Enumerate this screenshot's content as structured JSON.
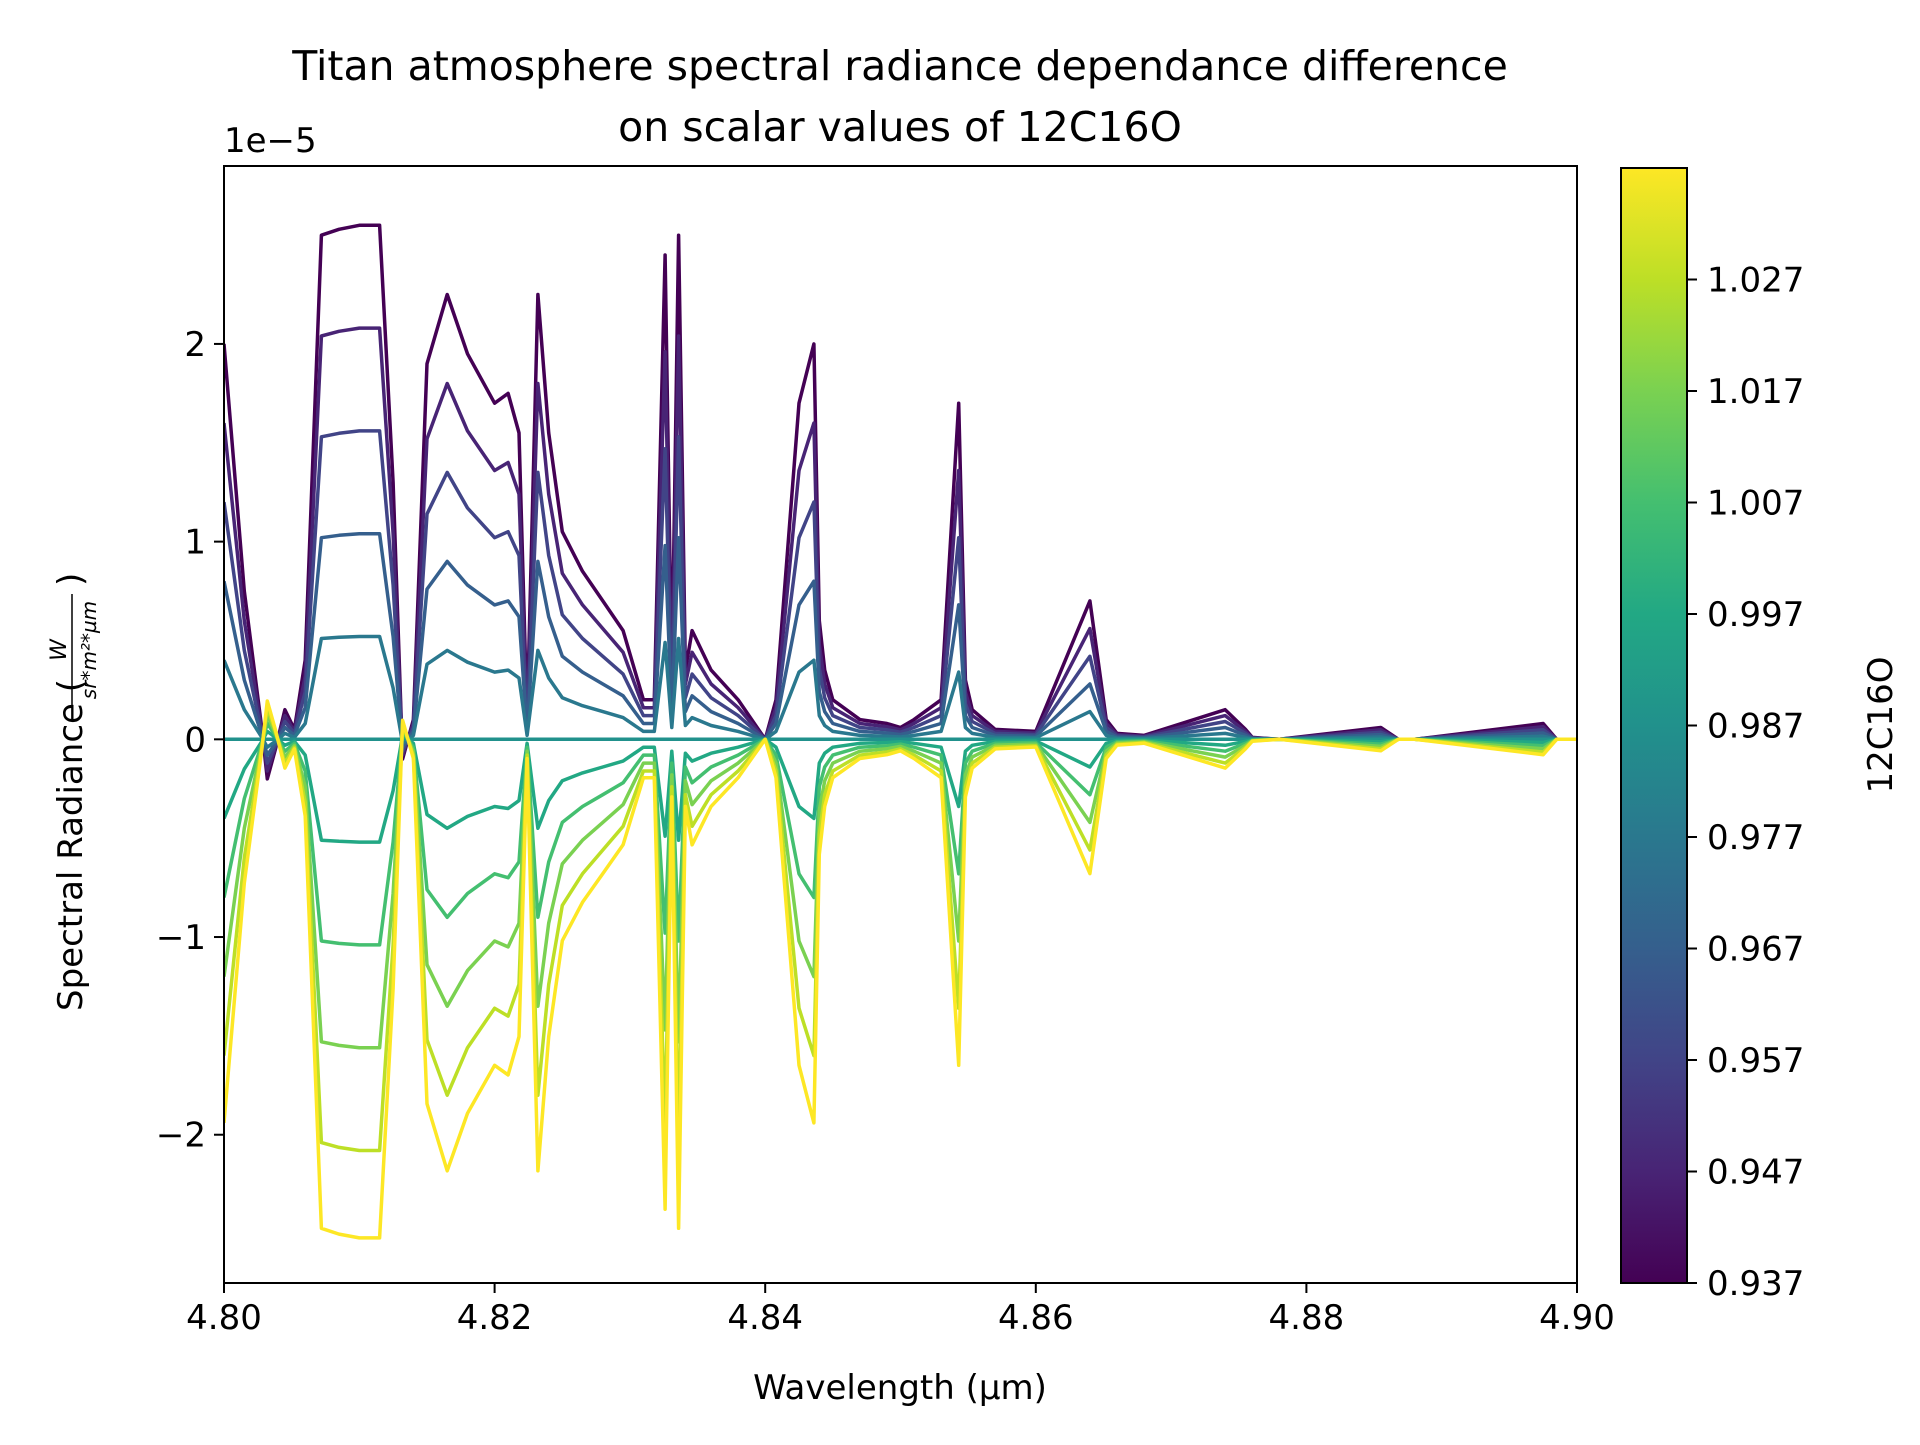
{
  "chart_data": {
    "type": "line",
    "title_line1": "Titan atmosphere spectral radiance dependance difference",
    "title_line2": "on scalar values of 12C16O",
    "xlabel": "Wavelength (µm)",
    "ylabel_prefix": "Spectral Radiance (",
    "ylabel_unit_numerator": "W",
    "ylabel_unit_denominator": "sr*m²*µm",
    "ylabel_suffix": ")",
    "y_offset_label": "1e−5",
    "xlim": [
      4.8,
      4.9
    ],
    "ylim": [
      -2.75,
      2.9
    ],
    "y_scale_exponent": -5,
    "x_ticks": [
      {
        "value": 4.8,
        "label": "4.80"
      },
      {
        "value": 4.82,
        "label": "4.82"
      },
      {
        "value": 4.84,
        "label": "4.84"
      },
      {
        "value": 4.86,
        "label": "4.86"
      },
      {
        "value": 4.88,
        "label": "4.88"
      },
      {
        "value": 4.9,
        "label": "4.90"
      }
    ],
    "y_ticks": [
      {
        "value": -2,
        "label": "−2"
      },
      {
        "value": -1,
        "label": "−1"
      },
      {
        "value": 0,
        "label": "0"
      },
      {
        "value": 1,
        "label": "1"
      },
      {
        "value": 2,
        "label": "2"
      }
    ],
    "colorbar": {
      "label": "12C16O",
      "colormap": "viridis",
      "range": [
        0.937,
        1.037
      ],
      "ticks": [
        "0.937",
        "0.947",
        "0.957",
        "0.967",
        "0.977",
        "0.987",
        "0.997",
        "1.007",
        "1.017",
        "1.027"
      ]
    },
    "series_scalars": [
      0.937,
      0.947,
      0.957,
      0.967,
      0.977,
      0.987,
      0.997,
      1.007,
      1.017,
      1.027,
      1.037
    ],
    "series_amplitude_factor": [
      1.0,
      0.8,
      0.6,
      0.4,
      0.2,
      0.0,
      -0.2,
      -0.4,
      -0.6,
      -0.8,
      -0.97
    ],
    "reference_profile": {
      "x": [
        4.8,
        4.8015,
        4.8028,
        4.8032,
        4.8038,
        4.8045,
        4.8052,
        4.806,
        4.8072,
        4.8085,
        4.81,
        4.8115,
        4.8125,
        4.8132,
        4.814,
        4.815,
        4.8165,
        4.818,
        4.82,
        4.821,
        4.8218,
        4.8224,
        4.8232,
        4.824,
        4.825,
        4.8265,
        4.828,
        4.8295,
        4.831,
        4.8318,
        4.8326,
        4.8331,
        4.8336,
        4.8341,
        4.8346,
        4.836,
        4.838,
        4.84,
        4.8408,
        4.8425,
        4.8436,
        4.844,
        4.8444,
        4.845,
        4.847,
        4.849,
        4.85,
        4.851,
        4.853,
        4.8543,
        4.8548,
        4.8553,
        4.857,
        4.86,
        4.864,
        4.8652,
        4.866,
        4.868,
        4.874,
        4.8755,
        4.876,
        4.878,
        4.8855,
        4.8868,
        4.888,
        4.8975,
        4.8985,
        4.9
      ],
      "y": [
        2.0,
        0.75,
        0.05,
        -0.2,
        -0.05,
        0.15,
        0.05,
        0.4,
        2.55,
        2.58,
        2.6,
        2.6,
        1.3,
        -0.1,
        0.1,
        1.9,
        2.25,
        1.95,
        1.7,
        1.75,
        1.55,
        0.1,
        2.25,
        1.55,
        1.05,
        0.85,
        0.7,
        0.55,
        0.2,
        0.2,
        2.45,
        0.3,
        2.55,
        0.35,
        0.55,
        0.35,
        0.2,
        0.0,
        0.2,
        1.7,
        2.0,
        0.6,
        0.35,
        0.2,
        0.1,
        0.08,
        0.06,
        0.1,
        0.2,
        1.7,
        0.3,
        0.15,
        0.05,
        0.04,
        0.7,
        0.1,
        0.03,
        0.02,
        0.15,
        0.05,
        0.01,
        0.0,
        0.06,
        0.0,
        0.0,
        0.08,
        0.0,
        0.0
      ]
    }
  }
}
